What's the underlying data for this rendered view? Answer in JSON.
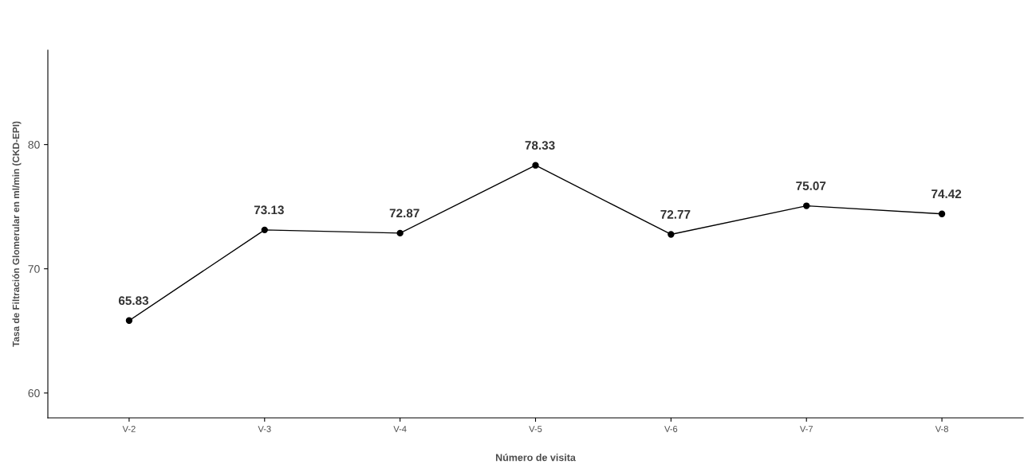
{
  "chart_data": {
    "type": "line",
    "xlabel": "Número de visita",
    "ylabel": "Tasa de Filtración Glomerular en ml/min (CKD-EPI)",
    "categories": [
      "V-2",
      "V-3",
      "V-4",
      "V-5",
      "V-6",
      "V-7",
      "V-8"
    ],
    "series": [
      {
        "color": "#000000",
        "values": [
          65.83,
          73.13,
          72.87,
          78.33,
          72.77,
          75.07,
          74.42
        ]
      }
    ],
    "ylim": [
      58,
      87.6
    ],
    "yticks": [
      60,
      70,
      80
    ],
    "grid": false,
    "legend": false,
    "marker": "circle",
    "line_style": "solid",
    "data_labels": true
  }
}
